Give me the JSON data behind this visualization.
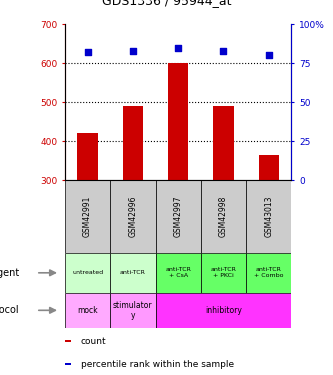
{
  "title": "GDS1336 / 95944_at",
  "samples": [
    "GSM42991",
    "GSM42996",
    "GSM42997",
    "GSM42998",
    "GSM43013"
  ],
  "counts": [
    420,
    490,
    600,
    490,
    365
  ],
  "percentile_ranks": [
    82,
    83,
    85,
    83,
    80
  ],
  "ymin": 300,
  "ymax": 700,
  "yticks_left": [
    300,
    400,
    500,
    600,
    700
  ],
  "yticks_right_vals": [
    0,
    25,
    50,
    75,
    100
  ],
  "yticks_right_labels": [
    "0",
    "25",
    "50",
    "75",
    "100%"
  ],
  "bar_color": "#cc0000",
  "dot_color": "#0000cc",
  "bar_bottom": 300,
  "agent_data": [
    [
      0,
      1,
      "#ccffcc",
      "untreated"
    ],
    [
      1,
      2,
      "#ccffcc",
      "anti-TCR"
    ],
    [
      2,
      3,
      "#66ff66",
      "anti-TCR\n+ CsA"
    ],
    [
      3,
      4,
      "#66ff66",
      "anti-TCR\n+ PKCi"
    ],
    [
      4,
      5,
      "#66ff66",
      "anti-TCR\n+ Combo"
    ]
  ],
  "protocol_data": [
    [
      0,
      1,
      "#ffaaff",
      "mock"
    ],
    [
      1,
      2,
      "#ff99ff",
      "stimulator\ny"
    ],
    [
      2,
      5,
      "#ff33ff",
      "inhibitory"
    ]
  ],
  "gsm_bg_color": "#cccccc",
  "legend_count_color": "#cc0000",
  "legend_pct_color": "#0000cc",
  "fig_width": 3.33,
  "fig_height": 3.75,
  "fig_dpi": 100
}
